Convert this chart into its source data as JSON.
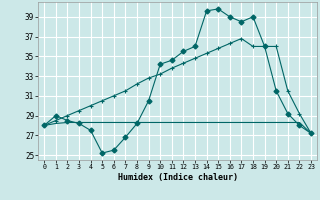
{
  "xlabel": "Humidex (Indice chaleur)",
  "bg_color": "#cce8e8",
  "grid_color": "#ffffff",
  "line_color": "#006666",
  "xlim": [
    -0.5,
    23.5
  ],
  "ylim": [
    24.5,
    40.5
  ],
  "xticks": [
    0,
    1,
    2,
    3,
    4,
    5,
    6,
    7,
    8,
    9,
    10,
    11,
    12,
    13,
    14,
    15,
    16,
    17,
    18,
    19,
    20,
    21,
    22,
    23
  ],
  "yticks": [
    25,
    27,
    29,
    31,
    33,
    35,
    37,
    39
  ],
  "series1_x": [
    0,
    1,
    2,
    3,
    4,
    5,
    6,
    7,
    8,
    9,
    10,
    11,
    12,
    13,
    14,
    15,
    16,
    17,
    18,
    19,
    20,
    21,
    22,
    23
  ],
  "series1_y": [
    28.0,
    29.0,
    28.5,
    28.2,
    27.5,
    25.2,
    25.5,
    26.8,
    28.2,
    30.5,
    34.2,
    34.6,
    35.5,
    36.0,
    39.6,
    39.8,
    39.0,
    38.5,
    39.0,
    36.0,
    31.5,
    29.2,
    28.0,
    27.2
  ],
  "series2_x": [
    0,
    1,
    2,
    3,
    4,
    5,
    6,
    7,
    8,
    9,
    10,
    11,
    12,
    13,
    14,
    15,
    16,
    17,
    18,
    19,
    20,
    21,
    22,
    23
  ],
  "series2_y": [
    28.0,
    28.5,
    29.0,
    29.5,
    30.0,
    30.5,
    31.0,
    31.5,
    32.2,
    32.8,
    33.2,
    33.8,
    34.3,
    34.8,
    35.3,
    35.8,
    36.3,
    36.8,
    36.0,
    36.0,
    36.0,
    31.5,
    29.2,
    27.2
  ],
  "series3_x": [
    0,
    1,
    2,
    3,
    4,
    5,
    6,
    7,
    8,
    9,
    10,
    11,
    12,
    13,
    14,
    15,
    16,
    17,
    18,
    19,
    20,
    21,
    22,
    23
  ],
  "series3_y": [
    28.0,
    28.2,
    28.3,
    28.3,
    28.3,
    28.3,
    28.3,
    28.3,
    28.3,
    28.3,
    28.3,
    28.3,
    28.3,
    28.3,
    28.3,
    28.3,
    28.3,
    28.3,
    28.3,
    28.3,
    28.3,
    28.3,
    28.3,
    27.2
  ]
}
